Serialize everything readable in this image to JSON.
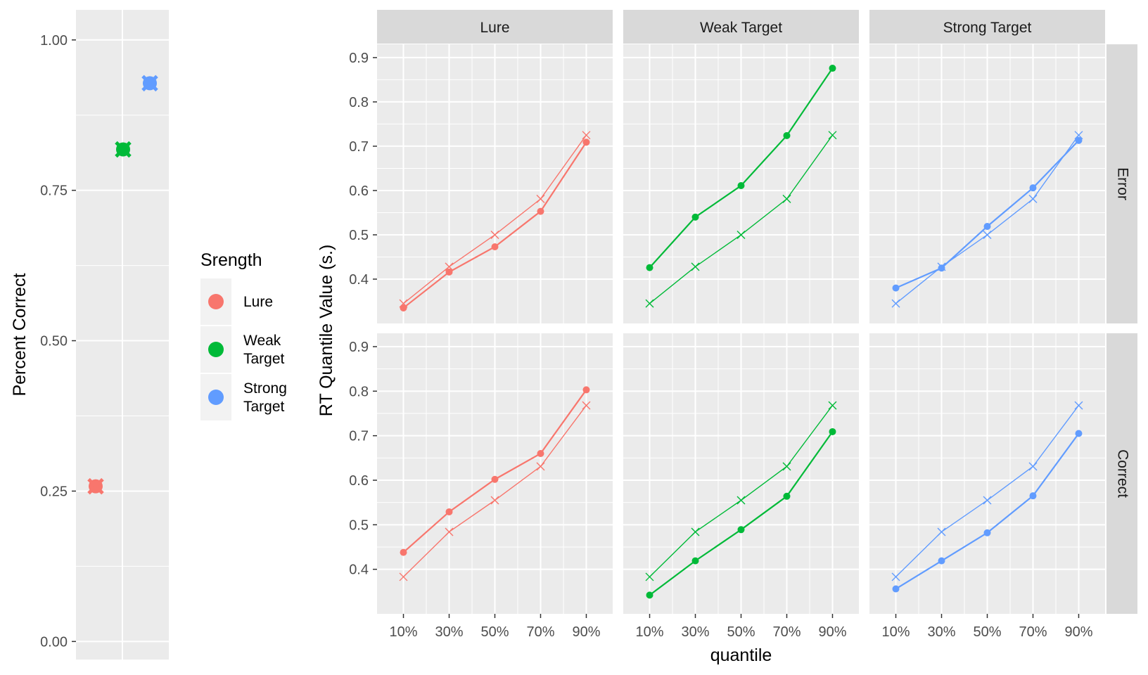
{
  "colors": {
    "Lure": "#F8766D",
    "Weak Target": "#00BA38",
    "Strong Target": "#619CFF",
    "panel_bg": "#EBEBEB",
    "strip_bg": "#D9D9D9",
    "grid": "#FFFFFF"
  },
  "legend": {
    "title": "Srength",
    "items": [
      {
        "label_lines": [
          "Lure"
        ],
        "key": "Lure"
      },
      {
        "label_lines": [
          "Weak",
          "Target"
        ],
        "key": "Weak Target"
      },
      {
        "label_lines": [
          "Strong",
          "Target"
        ],
        "key": "Strong Target"
      }
    ]
  },
  "chart_data": [
    {
      "type": "scatter",
      "ylabel": "Percent Correct",
      "xlabel": "",
      "ylim": [
        -0.03,
        1.05
      ],
      "yticks": [
        "0.00",
        "0.25",
        "0.50",
        "0.75",
        "1.00"
      ],
      "ytick_values": [
        0,
        0.25,
        0.5,
        0.75,
        1.0
      ],
      "marker_legend": "points = observed, crosses = predicted",
      "series": [
        {
          "name": "Lure",
          "observed": 0.258,
          "predicted": 0.258
        },
        {
          "name": "Weak Target",
          "observed": 0.818,
          "predicted": 0.818
        },
        {
          "name": "Strong Target",
          "observed": 0.928,
          "predicted": 0.928
        }
      ]
    },
    {
      "type": "line",
      "xlabel": "quantile",
      "ylabel": "RT Quantile Value (s.)",
      "x": [
        "10%",
        "30%",
        "50%",
        "70%",
        "90%"
      ],
      "ylim": [
        0.3,
        0.93
      ],
      "yticks": [
        "0.4",
        "0.5",
        "0.6",
        "0.7",
        "0.8",
        "0.9"
      ],
      "ytick_values": [
        0.4,
        0.5,
        0.6,
        0.7,
        0.8,
        0.9
      ],
      "columns": [
        "Lure",
        "Weak Target",
        "Strong Target"
      ],
      "rows": [
        "Error",
        "Correct"
      ],
      "panels": [
        {
          "row": "Error",
          "column": "Lure",
          "observed": [
            0.335,
            0.416,
            0.473,
            0.553,
            0.709
          ],
          "predicted": [
            0.345,
            0.428,
            0.5,
            0.581,
            0.725
          ]
        },
        {
          "row": "Error",
          "column": "Weak Target",
          "observed": [
            0.426,
            0.54,
            0.611,
            0.724,
            0.876
          ],
          "predicted": [
            0.345,
            0.428,
            0.5,
            0.581,
            0.725
          ]
        },
        {
          "row": "Error",
          "column": "Strong Target",
          "observed": [
            0.38,
            0.425,
            0.519,
            0.606,
            0.713
          ],
          "predicted": [
            0.345,
            0.428,
            0.5,
            0.581,
            0.725
          ]
        },
        {
          "row": "Correct",
          "column": "Lure",
          "observed": [
            0.438,
            0.529,
            0.602,
            0.66,
            0.803
          ],
          "predicted": [
            0.383,
            0.484,
            0.555,
            0.631,
            0.768
          ]
        },
        {
          "row": "Correct",
          "column": "Weak Target",
          "observed": [
            0.342,
            0.419,
            0.489,
            0.564,
            0.709
          ],
          "predicted": [
            0.383,
            0.484,
            0.555,
            0.631,
            0.768
          ]
        },
        {
          "row": "Correct",
          "column": "Strong Target",
          "observed": [
            0.356,
            0.419,
            0.482,
            0.565,
            0.705
          ],
          "predicted": [
            0.383,
            0.484,
            0.555,
            0.631,
            0.768
          ]
        }
      ]
    }
  ]
}
